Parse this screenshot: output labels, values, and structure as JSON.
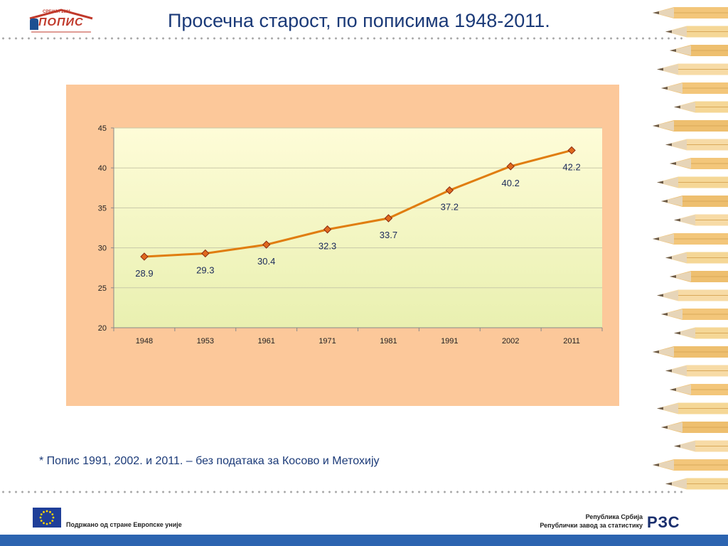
{
  "header": {
    "title": "Просечна старост, по пописима 1948-2011.",
    "logo_main_text": "ПОПИС",
    "logo_top_text": "СРБИЈА 2011"
  },
  "chart_data": {
    "type": "line",
    "categories": [
      "1948",
      "1953",
      "1961",
      "1971",
      "1981",
      "1991",
      "2002",
      "2011"
    ],
    "series": [
      {
        "values": [
          28.9,
          29.3,
          30.4,
          32.3,
          33.7,
          37.2,
          40.2,
          42.2
        ]
      }
    ],
    "data_labels": [
      "28.9",
      "29.3",
      "30.4",
      "32.3",
      "33.7",
      "37.2",
      "40.2",
      "42.2"
    ],
    "ylim": [
      20,
      45
    ],
    "yticks": [
      20,
      25,
      30,
      35,
      40,
      45
    ],
    "grid": true,
    "legend": "none",
    "colors": {
      "line": "#e07d10",
      "marker": "#e0691e",
      "marker_edge": "#8b2a10",
      "plot_bg_top": "#fefcd8",
      "plot_bg_bottom": "#e9f0b0",
      "frame_bg": "#fcc89a"
    }
  },
  "footnote": "* Попис 1991, 2002. и 2011. – без података за Косово и Метохију",
  "footer": {
    "eu_text": "Подржано од стране Европске уније",
    "rzs_line1": "Република Србија",
    "rzs_line2": "Републички завод за статистику",
    "rzs_logo": "РЗС"
  }
}
